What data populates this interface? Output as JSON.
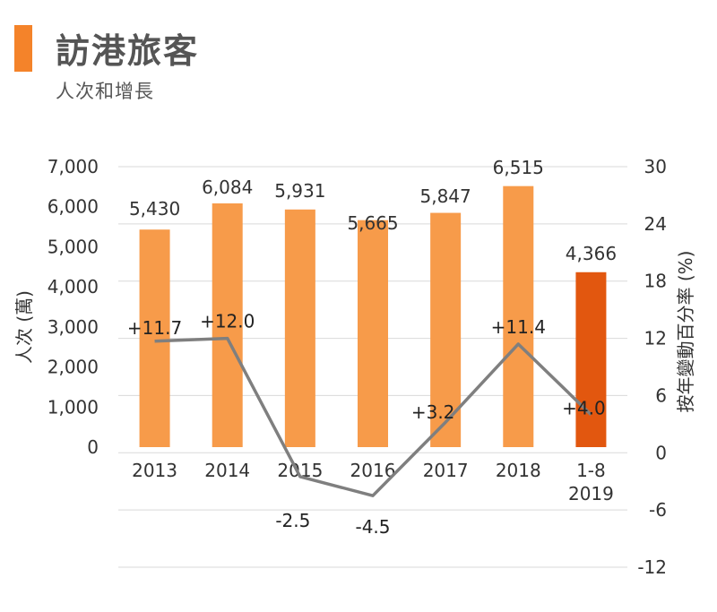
{
  "header": {
    "title": "訪港旅客",
    "subtitle": "人次和增長"
  },
  "colors": {
    "accent": "#f4832a",
    "bar": "#f79b4a",
    "bar_highlight": "#e2570f",
    "line": "#7f7f7f",
    "grid": "#d9d9d9"
  },
  "chart_data": {
    "type": "bar",
    "categories": [
      "2013",
      "2014",
      "2015",
      "2016",
      "2017",
      "2018",
      "1-8 2019"
    ],
    "series": [
      {
        "type": "bar",
        "axis": "left",
        "values": [
          5430,
          6084,
          5931,
          5665,
          5847,
          6515,
          4366
        ],
        "labels": [
          "5,430",
          "6,084",
          "5,931",
          "5,665",
          "5,847",
          "6,515",
          "4,366"
        ]
      },
      {
        "type": "line",
        "axis": "right",
        "values": [
          11.7,
          12.0,
          -2.5,
          -4.5,
          3.2,
          11.4,
          4.0
        ],
        "labels": [
          "+11.7",
          "+12.0",
          "-2.5",
          "-4.5",
          "+3.2",
          "+11.4",
          "+4.0"
        ]
      }
    ],
    "ylabel": "人次 (萬)",
    "y2label": "按年變動百分率 (%)",
    "ylim": [
      0,
      7000
    ],
    "y2lim": [
      -12,
      30
    ],
    "yticks": [
      0,
      1000,
      2000,
      3000,
      4000,
      5000,
      6000,
      7000
    ],
    "yticklabels": [
      "0",
      "1,000",
      "2,000",
      "3,000",
      "4,000",
      "5,000",
      "6,000",
      "7,000"
    ],
    "y2ticks": [
      -12,
      -6,
      0,
      6,
      12,
      18,
      24,
      30
    ],
    "y2ticklabels": [
      "-12",
      "-6",
      "0",
      "6",
      "12",
      "18",
      "24",
      "30"
    ],
    "grid": true,
    "legend": "none"
  }
}
